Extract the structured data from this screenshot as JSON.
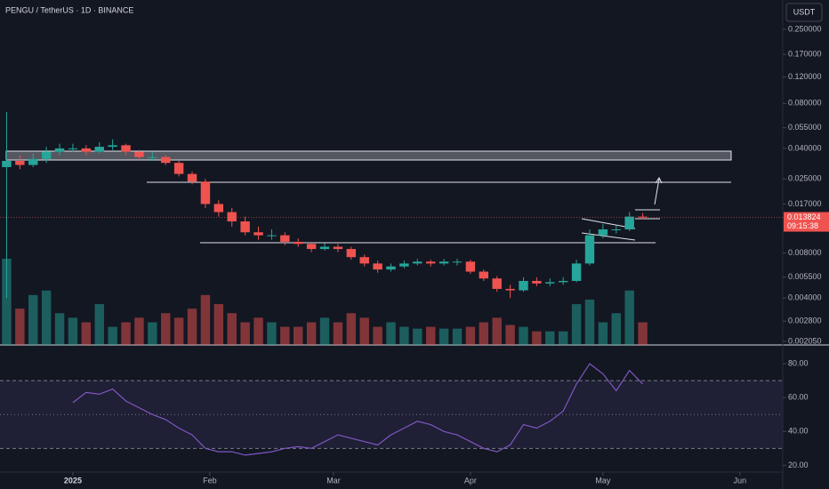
{
  "chart_data": [
    {
      "type": "candlestick",
      "title": "PENGU / TetherUS · 1D · BINANCE",
      "currency": "USDT",
      "last_price": 0.013824,
      "countdown": "09:15:38",
      "log": true,
      "up_color": "#26a69a",
      "down_color": "#ef5350",
      "x": [
        -15,
        -12,
        -9,
        -6,
        -3,
        0,
        3,
        6,
        9,
        12,
        15,
        18,
        21,
        24,
        27,
        30,
        33,
        36,
        39,
        42,
        45,
        48,
        51,
        54,
        57,
        60,
        63,
        66,
        69,
        72,
        75,
        78,
        81,
        84,
        87,
        90,
        93,
        96,
        99,
        102,
        105,
        108,
        111,
        114,
        117,
        120,
        123,
        126,
        129
      ],
      "open": [
        0.03,
        0.033,
        0.031,
        0.034,
        0.038,
        0.04,
        0.04,
        0.038,
        0.041,
        0.042,
        0.038,
        0.035,
        0.035,
        0.032,
        0.027,
        0.024,
        0.017,
        0.015,
        0.013,
        0.011,
        0.0105,
        0.0105,
        0.0095,
        0.0092,
        0.0085,
        0.0088,
        0.0085,
        0.0075,
        0.0068,
        0.0062,
        0.0065,
        0.0068,
        0.007,
        0.0068,
        0.007,
        0.007,
        0.006,
        0.0054,
        0.0046,
        0.0045,
        0.0052,
        0.005,
        0.0051,
        0.0052,
        0.0068,
        0.0105,
        0.0115,
        0.0115,
        0.014
      ],
      "high": [
        0.07,
        0.036,
        0.037,
        0.041,
        0.043,
        0.043,
        0.042,
        0.044,
        0.046,
        0.043,
        0.039,
        0.038,
        0.036,
        0.033,
        0.028,
        0.025,
        0.018,
        0.016,
        0.014,
        0.012,
        0.0115,
        0.011,
        0.01,
        0.0095,
        0.0093,
        0.0092,
        0.0088,
        0.0078,
        0.0071,
        0.0068,
        0.0071,
        0.0073,
        0.0072,
        0.0073,
        0.0073,
        0.0072,
        0.0062,
        0.0056,
        0.0049,
        0.0055,
        0.0055,
        0.0054,
        0.0055,
        0.0072,
        0.0115,
        0.0125,
        0.0122,
        0.015,
        0.0148
      ],
      "low": [
        0.004,
        0.029,
        0.03,
        0.032,
        0.036,
        0.038,
        0.036,
        0.037,
        0.039,
        0.036,
        0.033,
        0.033,
        0.031,
        0.026,
        0.023,
        0.016,
        0.014,
        0.012,
        0.0105,
        0.0098,
        0.0098,
        0.009,
        0.0088,
        0.0081,
        0.0083,
        0.0081,
        0.0072,
        0.0065,
        0.0059,
        0.006,
        0.0063,
        0.0066,
        0.0065,
        0.0066,
        0.0066,
        0.0058,
        0.0052,
        0.0044,
        0.004,
        0.0044,
        0.0048,
        0.0048,
        0.0049,
        0.0051,
        0.0066,
        0.01,
        0.0108,
        0.0112,
        0.0134
      ],
      "close": [
        0.033,
        0.031,
        0.034,
        0.038,
        0.04,
        0.04,
        0.038,
        0.041,
        0.042,
        0.038,
        0.035,
        0.035,
        0.032,
        0.027,
        0.024,
        0.017,
        0.015,
        0.013,
        0.011,
        0.0105,
        0.0105,
        0.0095,
        0.0092,
        0.0085,
        0.0088,
        0.0085,
        0.0075,
        0.0068,
        0.0062,
        0.0065,
        0.0068,
        0.007,
        0.0068,
        0.007,
        0.007,
        0.006,
        0.0054,
        0.0046,
        0.0045,
        0.0052,
        0.005,
        0.0051,
        0.0052,
        0.0068,
        0.0105,
        0.0115,
        0.0115,
        0.014,
        0.0138
      ],
      "volume": [
        95,
        40,
        55,
        60,
        35,
        30,
        25,
        45,
        20,
        25,
        30,
        25,
        35,
        30,
        40,
        55,
        45,
        35,
        25,
        30,
        25,
        20,
        20,
        25,
        30,
        25,
        35,
        30,
        20,
        25,
        20,
        18,
        20,
        18,
        18,
        20,
        25,
        30,
        22,
        20,
        15,
        15,
        15,
        45,
        50,
        25,
        35,
        60,
        25
      ],
      "volume_ylim": [
        0,
        380
      ],
      "xlim": [
        -16.5,
        160.7
      ],
      "xticks": [
        {
          "value": 0,
          "label": "2025"
        },
        {
          "value": 31,
          "label": "Feb"
        },
        {
          "value": 59,
          "label": "Mar"
        },
        {
          "value": 90,
          "label": "Apr"
        },
        {
          "value": 120,
          "label": "May"
        },
        {
          "value": 151,
          "label": "Jun"
        }
      ],
      "ylim": [
        0.00194,
        0.393
      ],
      "yticks": [
        {
          "value": 0.25,
          "label": "0.250000"
        },
        {
          "value": 0.17,
          "label": "0.170000"
        },
        {
          "value": 0.12,
          "label": "0.120000"
        },
        {
          "value": 0.08,
          "label": "0.080000"
        },
        {
          "value": 0.055,
          "label": "0.055000"
        },
        {
          "value": 0.04,
          "label": "0.040000"
        },
        {
          "value": 0.025,
          "label": "0.025000"
        },
        {
          "value": 0.017,
          "label": "0.017000"
        },
        {
          "value": 0.008,
          "label": "0.008000"
        },
        {
          "value": 0.0055,
          "label": "0.005500"
        },
        {
          "value": 0.004,
          "label": "0.004000"
        },
        {
          "value": 0.0028,
          "label": "0.002800"
        },
        {
          "value": 0.00205,
          "label": "0.002050"
        }
      ]
    },
    {
      "type": "line",
      "color": "#7e57c2",
      "x": [
        -15,
        -12,
        -9,
        -6,
        -3,
        0,
        3,
        6,
        9,
        12,
        15,
        18,
        21,
        24,
        27,
        30,
        33,
        36,
        39,
        42,
        45,
        48,
        51,
        54,
        57,
        60,
        63,
        66,
        69,
        72,
        75,
        78,
        81,
        84,
        87,
        90,
        93,
        96,
        99,
        102,
        105,
        108,
        111,
        114,
        117,
        120,
        123,
        126,
        129
      ],
      "values": [
        null,
        null,
        null,
        null,
        null,
        57,
        63,
        62,
        65,
        58,
        54,
        50,
        47,
        42,
        38,
        30,
        28,
        28,
        26,
        27,
        28,
        30,
        31,
        30,
        34,
        38,
        36,
        34,
        32,
        38,
        42,
        46,
        44,
        40,
        38,
        34,
        30,
        28,
        32,
        44,
        42,
        46,
        52,
        68,
        80,
        74,
        64,
        76,
        68
      ],
      "levels": [
        30,
        50,
        70
      ],
      "xlim": [
        -16.5,
        160.7
      ],
      "ylim": [
        16,
        90
      ],
      "yticks": [
        {
          "value": 80,
          "label": "80.00"
        },
        {
          "value": 60,
          "label": "60.00"
        },
        {
          "value": 40,
          "label": "40.00"
        },
        {
          "value": 20,
          "label": "20.00"
        }
      ]
    }
  ]
}
